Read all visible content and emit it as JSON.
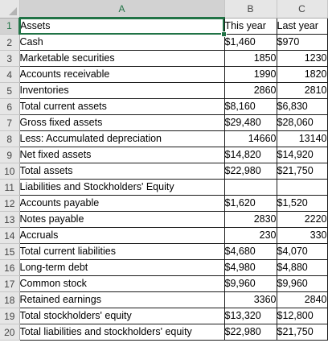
{
  "columns": [
    "A",
    "B",
    "C"
  ],
  "rows": [
    {
      "num": "1",
      "a": "Assets",
      "b": "This year",
      "c": "Last year",
      "b_align": "l",
      "c_align": "l"
    },
    {
      "num": "2",
      "a": "Cash",
      "b": "$1,460",
      "c": "$970",
      "b_align": "l",
      "c_align": "l"
    },
    {
      "num": "3",
      "a": "Marketable securities",
      "b": "1850",
      "c": "1230",
      "b_align": "r",
      "c_align": "r"
    },
    {
      "num": "4",
      "a": "Accounts receivable",
      "b": "1990",
      "c": "1820",
      "b_align": "r",
      "c_align": "r"
    },
    {
      "num": "5",
      "a": "Inventories",
      "b": "2860",
      "c": "2810",
      "b_align": "r",
      "c_align": "r"
    },
    {
      "num": "6",
      "a": "Total current assets",
      "b": "$8,160",
      "c": "$6,830",
      "b_align": "l",
      "c_align": "l"
    },
    {
      "num": "7",
      "a": "Gross fixed assets",
      "b": "$29,480",
      "c": "$28,060",
      "b_align": "l",
      "c_align": "l"
    },
    {
      "num": "8",
      "a": "Less: Accumulated depreciation",
      "b": "14660",
      "c": "13140",
      "b_align": "r",
      "c_align": "r"
    },
    {
      "num": "9",
      "a": "Net fixed assets",
      "b": "$14,820",
      "c": "$14,920",
      "b_align": "l",
      "c_align": "l"
    },
    {
      "num": "10",
      "a": "Total assets",
      "b": "$22,980",
      "c": "$21,750",
      "b_align": "l",
      "c_align": "l"
    },
    {
      "num": "11",
      "a": "Liabilities and Stockholders' Equity",
      "b": "",
      "c": "",
      "b_align": "l",
      "c_align": "l"
    },
    {
      "num": "12",
      "a": "Accounts payable",
      "b": "$1,620",
      "c": "$1,520",
      "b_align": "l",
      "c_align": "l"
    },
    {
      "num": "13",
      "a": "Notes payable",
      "b": "2830",
      "c": "2220",
      "b_align": "r",
      "c_align": "r"
    },
    {
      "num": "14",
      "a": "Accruals",
      "b": "230",
      "c": "330",
      "b_align": "r",
      "c_align": "r"
    },
    {
      "num": "15",
      "a": "Total current liabilities",
      "b": "$4,680",
      "c": "$4,070",
      "b_align": "l",
      "c_align": "l"
    },
    {
      "num": "16",
      "a": "Long-term debt",
      "b": "$4,980",
      "c": "$4,880",
      "b_align": "l",
      "c_align": "l"
    },
    {
      "num": "17",
      "a": "Common stock",
      "b": "$9,960",
      "c": "$9,960",
      "b_align": "l",
      "c_align": "l"
    },
    {
      "num": "18",
      "a": "Retained earnings",
      "b": "3360",
      "c": "2840",
      "b_align": "r",
      "c_align": "r"
    },
    {
      "num": "19",
      "a": "Total stockholders' equity",
      "b": "$13,320",
      "c": "$12,800",
      "b_align": "l",
      "c_align": "l"
    },
    {
      "num": "20",
      "a": "Total liabilities and stockholders' equity",
      "b": "$22,980",
      "c": "$21,750",
      "b_align": "l",
      "c_align": "l"
    }
  ],
  "selection": {
    "active_cell": "A1",
    "selected_column": "A",
    "selected_row": "1"
  },
  "colors": {
    "accent": "#217346",
    "header_bg": "#e6e6e6",
    "header_selected_bg": "#d2d2d2"
  }
}
